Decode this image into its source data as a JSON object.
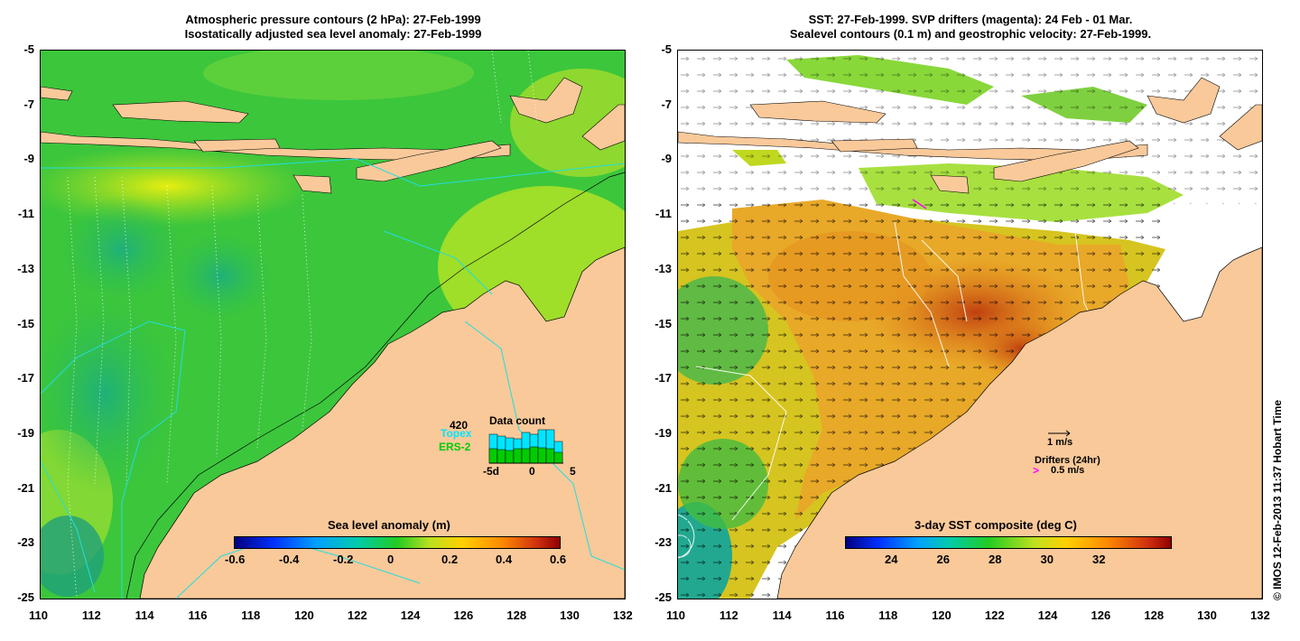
{
  "left_panel": {
    "title_line1": "Atmospheric pressure contours (2 hPa): 27-Feb-1999",
    "title_line2": "Isostatically adjusted sea level anomaly: 27-Feb-1999",
    "colorbar": {
      "title": "Sea level anomaly (m)",
      "ticks": [
        "-0.6",
        "-0.4",
        "-0.2",
        "0",
        "0.2",
        "0.4",
        "0.6"
      ]
    },
    "inset": {
      "title": "Data count",
      "max_count": "420",
      "legend_topex": "Topex",
      "legend_ers2": "ERS-2",
      "x_ticks": [
        "-5d",
        "0",
        "5"
      ],
      "topex_color": "#00e5ff",
      "ers2_color": "#00cc00"
    }
  },
  "right_panel": {
    "title_line1": "SST: 27-Feb-1999. SVP drifters (magenta): 24 Feb - 01 Mar.",
    "title_line2": "Sealevel contours (0.1 m) and geostrophic velocity: 27-Feb-1999.",
    "colorbar": {
      "title": "3-day SST composite (deg C)",
      "ticks": [
        "24",
        "26",
        "28",
        "30",
        "32"
      ]
    },
    "legend": {
      "velocity_scale": "1 m/s",
      "drifters_title": "Drifters (24hr)",
      "drifters_scale": "0.5 m/s",
      "drifter_color": "#ff00ff"
    }
  },
  "axes": {
    "lat_ticks": [
      "-5",
      "-7",
      "-9",
      "-11",
      "-13",
      "-15",
      "-17",
      "-19",
      "-21",
      "-23",
      "-25"
    ],
    "lon_ticks": [
      "110",
      "112",
      "114",
      "116",
      "118",
      "120",
      "122",
      "124",
      "126",
      "128",
      "130",
      "132"
    ]
  },
  "credit": "© IMOS 12-Feb-2013 11:37 Hobart Time",
  "colors": {
    "land": "#f9c99a",
    "ocean_green": "#33cc33",
    "ocean_light_green": "#99dd33",
    "ocean_yellow": "#d4e81a",
    "sst_orange": "#f0a020",
    "sst_dark": "#c85010",
    "topex_track": "#22dddd"
  }
}
